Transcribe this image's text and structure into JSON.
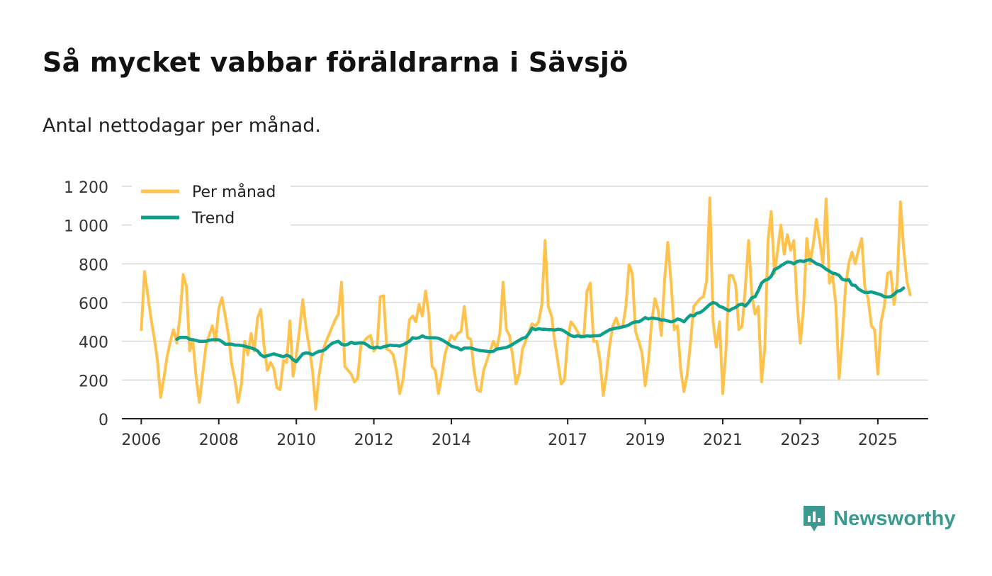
{
  "brand": {
    "name": "Newsworthy",
    "color": "#3a9a90"
  },
  "chart_data": {
    "type": "line",
    "title": "Så mycket vabbar föräldrarna i Sävsjö",
    "subtitle": "Antal nettodagar per månad.",
    "xlabel": "",
    "ylabel": "",
    "ylim": [
      0,
      1200
    ],
    "xlim": [
      2005.5,
      2026.3
    ],
    "grid": true,
    "legend_position": "top-left",
    "x_ticks": [
      {
        "value": 2006,
        "label": "2006"
      },
      {
        "value": 2008,
        "label": "2008"
      },
      {
        "value": 2010,
        "label": "2010"
      },
      {
        "value": 2012,
        "label": "2012"
      },
      {
        "value": 2014,
        "label": "2014"
      },
      {
        "value": 2017,
        "label": "2017"
      },
      {
        "value": 2019,
        "label": "2019"
      },
      {
        "value": 2021,
        "label": "2021"
      },
      {
        "value": 2023,
        "label": "2023"
      },
      {
        "value": 2025,
        "label": "2025"
      }
    ],
    "y_ticks": [
      {
        "value": 0,
        "label": "0"
      },
      {
        "value": 200,
        "label": "200"
      },
      {
        "value": 400,
        "label": "400"
      },
      {
        "value": 600,
        "label": "600"
      },
      {
        "value": 800,
        "label": "800"
      },
      {
        "value": 1000,
        "label": "1 000"
      },
      {
        "value": 1200,
        "label": "1 200"
      }
    ],
    "series": [
      {
        "name": "Per månad",
        "color": "#ffc24d",
        "start": [
          2006,
          1
        ],
        "values": [
          460,
          760,
          640,
          520,
          420,
          300,
          110,
          210,
          320,
          400,
          460,
          390,
          530,
          745,
          680,
          350,
          400,
          210,
          85,
          230,
          370,
          430,
          480,
          400,
          570,
          625,
          530,
          430,
          280,
          200,
          85,
          180,
          400,
          330,
          440,
          350,
          520,
          565,
          380,
          250,
          290,
          260,
          160,
          150,
          300,
          290,
          505,
          220,
          330,
          460,
          615,
          470,
          370,
          250,
          50,
          220,
          330,
          390,
          430,
          470,
          510,
          540,
          705,
          270,
          250,
          230,
          190,
          210,
          380,
          400,
          420,
          430,
          350,
          370,
          630,
          635,
          360,
          350,
          330,
          250,
          130,
          200,
          350,
          510,
          530,
          500,
          590,
          530,
          660,
          540,
          270,
          250,
          130,
          220,
          330,
          390,
          430,
          410,
          440,
          450,
          580,
          420,
          410,
          250,
          150,
          140,
          250,
          300,
          350,
          400,
          360,
          440,
          705,
          460,
          430,
          320,
          180,
          230,
          360,
          400,
          450,
          490,
          480,
          500,
          590,
          920,
          580,
          530,
          400,
          290,
          180,
          200,
          410,
          500,
          480,
          450,
          420,
          430,
          660,
          700,
          400,
          400,
          300,
          120,
          230,
          380,
          480,
          520,
          470,
          470,
          580,
          795,
          750,
          450,
          400,
          340,
          170,
          300,
          500,
          620,
          560,
          430,
          720,
          910,
          700,
          460,
          480,
          250,
          140,
          230,
          390,
          580,
          600,
          620,
          630,
          710,
          1140,
          500,
          370,
          500,
          130,
          360,
          740,
          740,
          690,
          460,
          480,
          680,
          920,
          640,
          540,
          580,
          190,
          360,
          920,
          1070,
          750,
          870,
          1000,
          850,
          950,
          870,
          920,
          600,
          390,
          570,
          930,
          800,
          900,
          1030,
          920,
          800,
          1135,
          700,
          740,
          590,
          210,
          420,
          680,
          800,
          860,
          800,
          870,
          930,
          680,
          620,
          480,
          460,
          230,
          500,
          580,
          750,
          760,
          590,
          700,
          1120,
          880,
          710,
          640
        ]
      },
      {
        "name": "Trend",
        "color": "#0d9e8c",
        "start": [
          2006,
          12
        ],
        "values": [
          410,
          420,
          420,
          420,
          410,
          408,
          404,
          400,
          400,
          400,
          405,
          408,
          408,
          408,
          398,
          385,
          385,
          385,
          380,
          380,
          378,
          375,
          370,
          365,
          360,
          350,
          330,
          320,
          325,
          330,
          335,
          330,
          325,
          320,
          328,
          322,
          305,
          295,
          315,
          335,
          340,
          338,
          330,
          340,
          348,
          350,
          358,
          375,
          388,
          395,
          400,
          385,
          380,
          385,
          395,
          388,
          390,
          392,
          390,
          380,
          368,
          365,
          370,
          365,
          372,
          375,
          380,
          378,
          378,
          375,
          382,
          390,
          400,
          418,
          415,
          418,
          428,
          420,
          418,
          418,
          418,
          415,
          408,
          398,
          388,
          375,
          370,
          365,
          355,
          365,
          365,
          365,
          360,
          355,
          352,
          350,
          348,
          346,
          348,
          360,
          362,
          365,
          368,
          375,
          385,
          395,
          405,
          415,
          420,
          440,
          468,
          460,
          465,
          462,
          462,
          460,
          460,
          458,
          462,
          460,
          452,
          440,
          430,
          424,
          428,
          425,
          424,
          428,
          426,
          428,
          428,
          430,
          440,
          450,
          460,
          464,
          468,
          470,
          475,
          478,
          485,
          495,
          500,
          500,
          510,
          522,
          515,
          520,
          518,
          515,
          510,
          510,
          505,
          500,
          505,
          515,
          510,
          500,
          520,
          535,
          530,
          545,
          548,
          560,
          575,
          590,
          600,
          595,
          580,
          575,
          565,
          558,
          568,
          575,
          588,
          592,
          582,
          600,
          625,
          630,
          662,
          700,
          715,
          720,
          735,
          770,
          778,
          790,
          800,
          810,
          808,
          800,
          812,
          815,
          812,
          818,
          822,
          812,
          800,
          795,
          785,
          772,
          762,
          752,
          748,
          740,
          720,
          715,
          718,
          690,
          688,
          670,
          660,
          652,
          652,
          655,
          650,
          645,
          640,
          630,
          628,
          630,
          642,
          658,
          662,
          675
        ]
      }
    ]
  }
}
